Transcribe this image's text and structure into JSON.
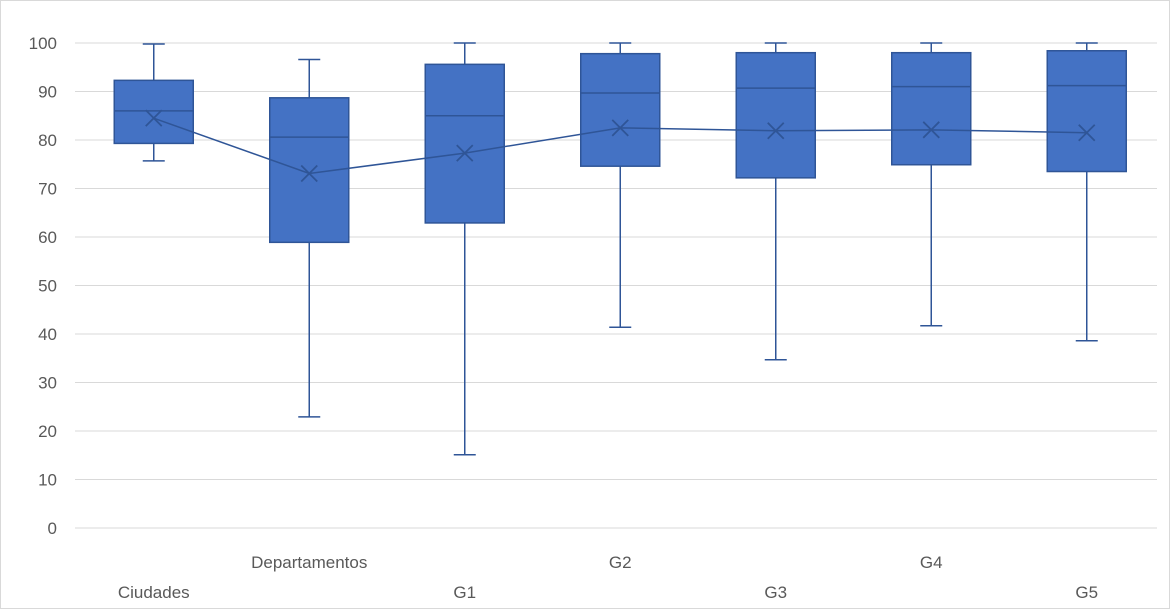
{
  "chart_data": {
    "type": "box",
    "title": "",
    "xlabel": "",
    "ylabel": "",
    "ylim": [
      0,
      100
    ],
    "yticks": [
      0,
      10,
      20,
      30,
      40,
      50,
      60,
      70,
      80,
      90,
      100
    ],
    "grid": true,
    "legend": "none",
    "colors": {
      "box_fill": "#4472c4",
      "box_edge": "#2f5597",
      "grid": "#d9d9d9",
      "text": "#595959"
    },
    "mean_line": true,
    "categories": [
      "Ciudades",
      "Departamentos",
      "G1",
      "G2",
      "G3",
      "G4",
      "G5"
    ],
    "boxes": [
      {
        "min": 75.7,
        "q1": 79.3,
        "median": 86.0,
        "q3": 92.3,
        "max": 99.8,
        "mean": 84.5
      },
      {
        "min": 22.9,
        "q1": 58.9,
        "median": 80.6,
        "q3": 88.7,
        "max": 96.6,
        "mean": 73.1
      },
      {
        "min": 15.1,
        "q1": 62.9,
        "median": 85.0,
        "q3": 95.6,
        "max": 100.0,
        "mean": 77.3
      },
      {
        "min": 41.4,
        "q1": 74.6,
        "median": 89.7,
        "q3": 97.8,
        "max": 100.0,
        "mean": 82.5
      },
      {
        "min": 34.7,
        "q1": 72.2,
        "median": 90.7,
        "q3": 98.0,
        "max": 100.0,
        "mean": 81.9
      },
      {
        "min": 41.7,
        "q1": 74.9,
        "median": 91.0,
        "q3": 98.0,
        "max": 100.0,
        "mean": 82.1
      },
      {
        "min": 38.6,
        "q1": 73.5,
        "median": 91.2,
        "q3": 98.4,
        "max": 100.0,
        "mean": 81.5
      }
    ]
  }
}
